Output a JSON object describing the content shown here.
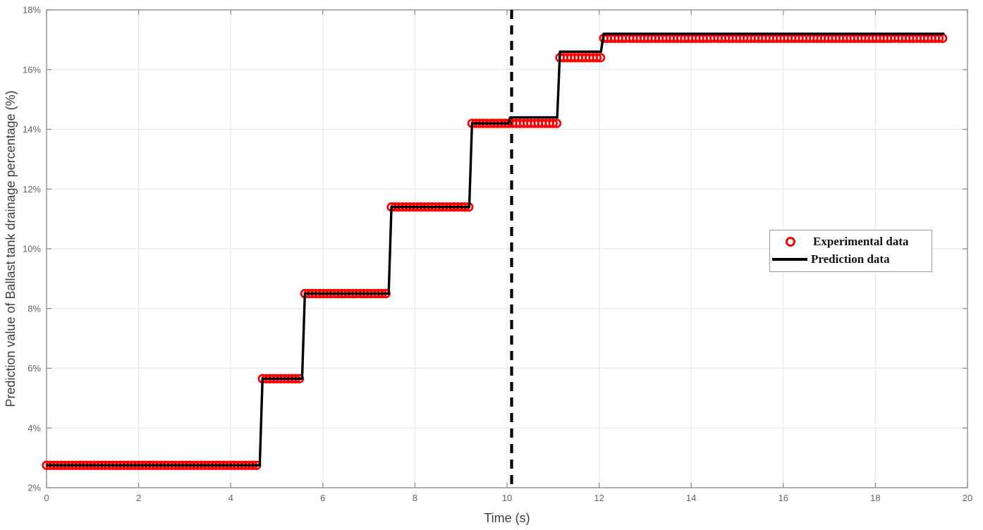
{
  "figure": {
    "background_color": "#ffffff",
    "spine_color": "#8f8f8f",
    "grid_color": "#e8e8e8",
    "tick_label_color": "#636363",
    "axis_label_color": "#3d3d3d"
  },
  "chart_data": {
    "type": "line",
    "title": "",
    "xlabel": "Time（s）",
    "ylabel": "Prediction value of Ballast tank drainage percentage（%）",
    "xlim": [
      0,
      20
    ],
    "ylim": [
      2,
      18
    ],
    "grid": true,
    "xtick_values": [
      0,
      2,
      4,
      6,
      8,
      10,
      12,
      14,
      16,
      18,
      20
    ],
    "xtick_labels": [
      "0",
      "2",
      "4",
      "6",
      "8",
      "10",
      "12",
      "14",
      "16",
      "18",
      "20"
    ],
    "ytick_values": [
      2,
      4,
      6,
      8,
      10,
      12,
      14,
      16,
      18
    ],
    "ytick_labels": [
      "2%",
      "4%",
      "6%",
      "8%",
      "10%",
      "12%",
      "14%",
      "16%",
      "18%"
    ],
    "threshold_line": {
      "x": 10.1,
      "style": "dashed",
      "color": "#000000"
    },
    "series": [
      {
        "name": "Experimental data",
        "style": "scatter-circle",
        "color": "#ff0000",
        "marker_interval_s": 0.08,
        "steps": [
          {
            "t_start": 0.0,
            "t_end": 4.63,
            "value": 2.75
          },
          {
            "t_start": 4.69,
            "t_end": 5.55,
            "value": 5.65
          },
          {
            "t_start": 5.61,
            "t_end": 7.43,
            "value": 8.5
          },
          {
            "t_start": 7.49,
            "t_end": 9.18,
            "value": 11.4
          },
          {
            "t_start": 9.24,
            "t_end": 11.09,
            "value": 14.2
          },
          {
            "t_start": 11.15,
            "t_end": 12.04,
            "value": 16.4
          },
          {
            "t_start": 12.1,
            "t_end": 19.5,
            "value": 17.05
          }
        ]
      },
      {
        "name": "Prediction data",
        "style": "line",
        "color": "#000000",
        "steps": [
          {
            "t_start": 0.0,
            "t_end": 4.63,
            "value": 2.75
          },
          {
            "t_start": 4.69,
            "t_end": 5.55,
            "value": 5.65
          },
          {
            "t_start": 5.61,
            "t_end": 7.43,
            "value": 8.5
          },
          {
            "t_start": 7.49,
            "t_end": 9.18,
            "value": 11.4
          },
          {
            "t_start": 9.24,
            "t_end": 10.03,
            "value": 14.2
          },
          {
            "t_start": 10.07,
            "t_end": 11.09,
            "value": 14.4
          },
          {
            "t_start": 11.15,
            "t_end": 12.04,
            "value": 16.6
          },
          {
            "t_start": 12.1,
            "t_end": 19.5,
            "value": 17.2
          }
        ]
      }
    ],
    "legend": {
      "position": "right-middle",
      "items": [
        {
          "label": "Experimental data",
          "marker": "red-open-circle"
        },
        {
          "label": "Prediction data",
          "marker": "black-line"
        }
      ]
    }
  }
}
